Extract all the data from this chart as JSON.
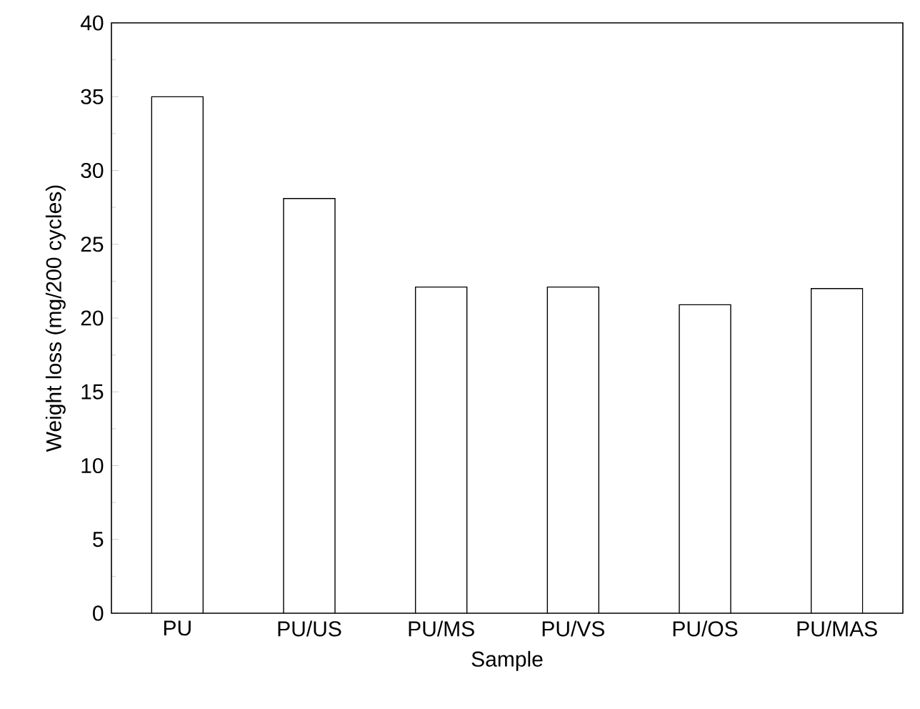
{
  "chart_data": {
    "type": "bar",
    "xlabel": "Sample",
    "ylabel": "Weight loss (mg/200 cycles)",
    "categories": [
      "PU",
      "PU/US",
      "PU/MS",
      "PU/VS",
      "PU/OS",
      "PU/MAS"
    ],
    "values": [
      35,
      28.1,
      22.1,
      22.1,
      20.9,
      22.0
    ],
    "color": "#000000",
    "ylim": [
      0,
      40
    ],
    "yticks": [
      0,
      5,
      10,
      15,
      20,
      25,
      30,
      35,
      40
    ],
    "grid": false
  }
}
